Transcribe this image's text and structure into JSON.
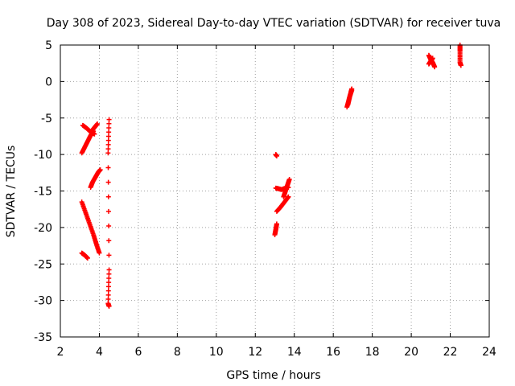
{
  "chart_data": {
    "type": "scatter",
    "title": "Day 308 of 2023, Sidereal Day-to-day VTEC variation (SDTVAR) for receiver tuva",
    "xlabel": "GPS time / hours",
    "ylabel": "SDTVAR / TECUs",
    "xlim": [
      2,
      24
    ],
    "ylim": [
      -35,
      5
    ],
    "xticks": [
      "2",
      "4",
      "6",
      "8",
      "10",
      "12",
      "14",
      "16",
      "18",
      "20",
      "22",
      "24"
    ],
    "yticks": [
      "5",
      "0",
      "-5",
      "-10",
      "-15",
      "-20",
      "-25",
      "-30",
      "-35"
    ],
    "grid": true,
    "marker": "+",
    "series": [
      {
        "name": "tuva",
        "color": "#ff0000",
        "segments": [
          {
            "x": [
              3.1,
              3.25,
              3.4,
              3.55,
              3.7
            ],
            "y": [
              -9.8,
              -9.0,
              -8.2,
              -7.4,
              -6.8
            ]
          },
          {
            "x": [
              3.15,
              3.35,
              3.55,
              3.75
            ],
            "y": [
              -6.0,
              -6.4,
              -6.9,
              -7.2
            ]
          },
          {
            "x": [
              3.6,
              3.75,
              3.9
            ],
            "y": [
              -6.8,
              -6.3,
              -5.8
            ]
          },
          {
            "x": [
              3.55,
              3.65,
              3.8,
              3.95,
              4.05
            ],
            "y": [
              -14.5,
              -13.8,
              -13.1,
              -12.4,
              -12.1
            ]
          },
          {
            "x": [
              3.1,
              3.3,
              3.5,
              3.7,
              3.85,
              4.0
            ],
            "y": [
              -16.5,
              -18.0,
              -19.5,
              -21.0,
              -22.3,
              -23.5
            ]
          },
          {
            "x": [
              3.1,
              3.25,
              3.4
            ],
            "y": [
              -23.5,
              -23.8,
              -24.2
            ]
          },
          {
            "x": [
              4.5,
              4.45,
              4.5,
              4.45,
              4.5
            ],
            "y": [
              -5.2,
              -9.8,
              -25.8,
              -30.4,
              -30.8
            ]
          },
          {
            "x": [
              13.0,
              13.05,
              13.1
            ],
            "y": [
              -21.0,
              -20.3,
              -19.5
            ]
          },
          {
            "x": [
              13.1,
              13.3,
              13.5,
              13.7
            ],
            "y": [
              -17.8,
              -17.2,
              -16.5,
              -15.8
            ]
          },
          {
            "x": [
              13.05,
              13.2,
              13.35,
              13.55,
              13.7
            ],
            "y": [
              -14.6,
              -14.7,
              -14.8,
              -14.6,
              -14.5
            ]
          },
          {
            "x": [
              13.45,
              13.55,
              13.65,
              13.75
            ],
            "y": [
              -15.8,
              -15.0,
              -14.2,
              -13.4
            ]
          },
          {
            "x": [
              13.05,
              13.1
            ],
            "y": [
              -10.0,
              -10.2
            ]
          },
          {
            "x": [
              16.7,
              16.8,
              16.9,
              16.95
            ],
            "y": [
              -3.5,
              -2.5,
              -1.5,
              -1.0
            ]
          },
          {
            "x": [
              16.75,
              16.85,
              16.95
            ],
            "y": [
              -3.2,
              -2.0,
              -1.2
            ]
          },
          {
            "x": [
              20.9,
              21.0,
              21.1,
              21.2
            ],
            "y": [
              3.6,
              3.0,
              2.6,
              2.0
            ]
          },
          {
            "x": [
              20.9,
              21.0,
              21.1
            ],
            "y": [
              2.4,
              2.8,
              3.2
            ]
          },
          {
            "x": [
              22.5,
              22.5,
              22.5,
              22.55
            ],
            "y": [
              5.0,
              4.2,
              2.6,
              2.2
            ]
          }
        ]
      }
    ]
  }
}
